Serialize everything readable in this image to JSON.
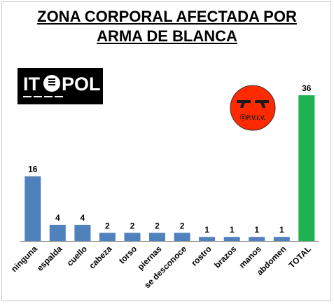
{
  "title_line1": "ZONA CORPORAL AFECTADA POR",
  "title_line2": "ARMA DE BLANCA",
  "logos": {
    "itepol": "ITEPOL",
    "opviv": "OPVIV"
  },
  "colors": {
    "bar_default": "#4f81bd",
    "bar_total": "#1fb14f",
    "axis": "#7f7f7f",
    "logo_red": "#ff2a00"
  },
  "chart_data": {
    "type": "bar",
    "title": "ZONA CORPORAL AFECTADA POR ARMA DE BLANCA",
    "categories": [
      "ninguna",
      "espalda",
      "cuello",
      "cabeza",
      "torso",
      "piernas",
      "se desconoce",
      "rostro",
      "brazos",
      "manos",
      "abdomen",
      "TOTAL"
    ],
    "values": [
      16,
      4,
      4,
      2,
      2,
      2,
      2,
      1,
      1,
      1,
      1,
      36
    ],
    "data_labels": [
      "16",
      "4",
      "4",
      "2",
      "2",
      "2",
      "2",
      "1",
      "1",
      "1",
      "1",
      "36"
    ],
    "ylim": [
      0,
      36
    ],
    "grid": false,
    "legend": "none",
    "highlight": {
      "TOTAL": "#1fb14f"
    }
  }
}
